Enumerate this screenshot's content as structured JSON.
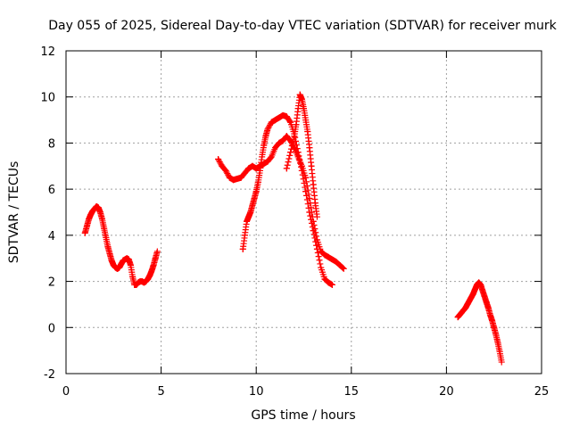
{
  "chart_data": {
    "type": "scatter",
    "title": "Day 055 of 2025, Sidereal Day-to-day VTEC variation (SDTVAR) for receiver murk",
    "xlabel": "GPS time / hours",
    "ylabel": "SDTVAR / TECUs",
    "xlim": [
      0,
      25
    ],
    "ylim": [
      -2,
      12
    ],
    "xticks": [
      "0",
      "5",
      "10",
      "15",
      "20",
      "25"
    ],
    "yticks": [
      "-2",
      "0",
      "2",
      "4",
      "6",
      "8",
      "10",
      "12"
    ],
    "grid": true,
    "legend": false,
    "marker": "plus",
    "color": "#ff0000",
    "series": [
      {
        "x": [
          1.0,
          1.1,
          1.2,
          1.3,
          1.4,
          1.5,
          1.6,
          1.7,
          1.8,
          1.9,
          2.0,
          2.1,
          2.2,
          2.3,
          2.4,
          2.5,
          2.6,
          2.7,
          2.8,
          2.9,
          3.0,
          3.1,
          3.2,
          3.3,
          3.4,
          3.5,
          3.6,
          3.7,
          3.8,
          3.9,
          4.0,
          4.1,
          4.2,
          4.3,
          4.4,
          4.5,
          4.6,
          4.7,
          4.8
        ],
        "y": [
          4.1,
          4.4,
          4.7,
          4.9,
          5.05,
          5.15,
          5.25,
          5.2,
          5.0,
          4.7,
          4.3,
          3.9,
          3.5,
          3.2,
          2.9,
          2.7,
          2.6,
          2.55,
          2.6,
          2.75,
          2.9,
          2.95,
          3.0,
          2.95,
          2.7,
          2.2,
          1.85,
          1.85,
          1.95,
          2.0,
          2.0,
          1.95,
          2.0,
          2.1,
          2.25,
          2.45,
          2.7,
          3.0,
          3.3
        ]
      },
      {
        "x": [
          8.0,
          8.2,
          8.4,
          8.6,
          8.8,
          9.0,
          9.2,
          9.4,
          9.6,
          9.8,
          10.0,
          10.2,
          10.4,
          10.6,
          10.8,
          11.0,
          11.2,
          11.4,
          11.6,
          11.8,
          12.0,
          12.2,
          12.4,
          12.6,
          12.8,
          13.0,
          13.2,
          13.4,
          13.6,
          13.8,
          14.0,
          14.2,
          14.4,
          14.6
        ],
        "y": [
          7.3,
          7.0,
          6.8,
          6.5,
          6.4,
          6.45,
          6.5,
          6.7,
          6.9,
          7.0,
          6.9,
          7.0,
          7.1,
          7.2,
          7.4,
          7.8,
          8.0,
          8.1,
          8.3,
          8.1,
          7.8,
          7.4,
          7.0,
          6.5,
          5.6,
          4.6,
          3.8,
          3.3,
          3.15,
          3.05,
          2.95,
          2.85,
          2.7,
          2.55
        ]
      },
      {
        "x": [
          9.3,
          9.4,
          9.5,
          9.6,
          9.7,
          9.8,
          9.9,
          10.0,
          10.1,
          10.2,
          10.3,
          10.4,
          10.5,
          10.6,
          10.8,
          11.0,
          11.2,
          11.4,
          11.6,
          11.8,
          12.0,
          12.2,
          12.4,
          12.6,
          12.8,
          13.0,
          13.2,
          13.4,
          13.6,
          13.8,
          14.0
        ],
        "y": [
          3.4,
          4.0,
          4.6,
          4.8,
          5.0,
          5.3,
          5.6,
          5.9,
          6.3,
          6.8,
          7.4,
          7.9,
          8.3,
          8.6,
          8.9,
          9.0,
          9.1,
          9.2,
          9.15,
          8.9,
          8.4,
          7.6,
          6.8,
          5.9,
          5.0,
          4.2,
          3.4,
          2.6,
          2.1,
          1.95,
          1.85
        ]
      },
      {
        "x": [
          11.6,
          11.8,
          12.0,
          12.1,
          12.2,
          12.3,
          12.4,
          12.5,
          12.6,
          12.7,
          12.8,
          12.9,
          13.0,
          13.1,
          13.2
        ],
        "y": [
          6.9,
          7.6,
          8.3,
          8.8,
          9.5,
          10.1,
          9.9,
          9.5,
          9.0,
          8.5,
          7.8,
          7.0,
          6.2,
          5.4,
          4.8
        ]
      },
      {
        "x": [
          20.6,
          20.7,
          20.8,
          20.9,
          21.0,
          21.1,
          21.2,
          21.3,
          21.4,
          21.5,
          21.6,
          21.7,
          21.8,
          21.9,
          22.0,
          22.1,
          22.2,
          22.3,
          22.4,
          22.5,
          22.6,
          22.7,
          22.8,
          22.9
        ],
        "y": [
          0.45,
          0.55,
          0.65,
          0.75,
          0.85,
          1.0,
          1.15,
          1.3,
          1.45,
          1.65,
          1.85,
          1.95,
          1.85,
          1.6,
          1.35,
          1.1,
          0.85,
          0.55,
          0.3,
          0.0,
          -0.3,
          -0.65,
          -1.05,
          -1.5
        ]
      }
    ]
  }
}
